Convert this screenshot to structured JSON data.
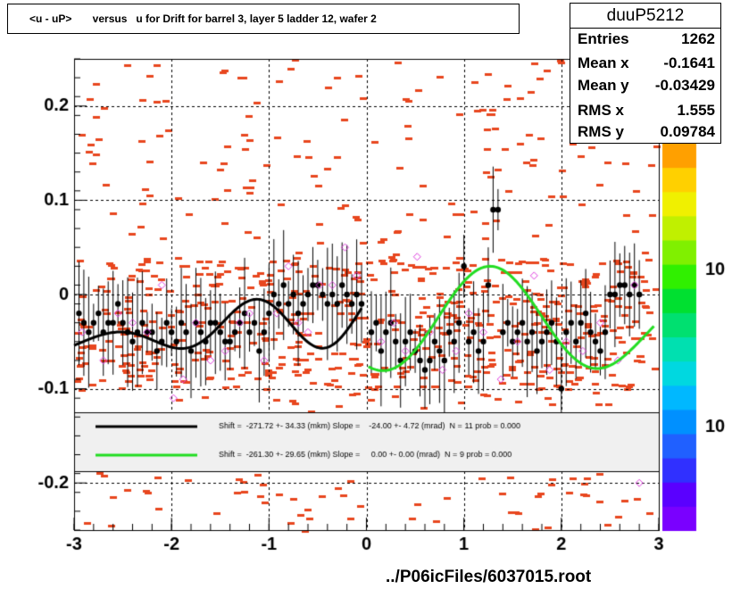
{
  "title": "<u - uP>       versus   u for Drift for barrel 3, layer 5 ladder 12, wafer 2",
  "stats": {
    "name": "duuP5212",
    "rows": [
      {
        "key": "Entries",
        "value": "1262"
      },
      {
        "key": "Mean x",
        "value": "-0.1641"
      },
      {
        "key": "Mean y",
        "value": "-0.03429"
      },
      {
        "key": "RMS x",
        "value": "1.555"
      },
      {
        "key": "RMS y",
        "value": "0.09784"
      }
    ]
  },
  "footer": "../P06icFiles/6037015.root",
  "colors": {
    "hist": "#e8461e",
    "black_fit": "#000000",
    "green_fit": "#22dd22",
    "open_marker": "#e040e0"
  },
  "chart_data": {
    "type": "scatter",
    "title": "<u - uP>       versus   u for Drift for barrel 3, layer 5 ladder 12, wafer 2",
    "xlim": [
      -3,
      3
    ],
    "ylim": [
      -0.25,
      0.25
    ],
    "xticks": [
      "-3",
      "-2",
      "-1",
      "0",
      "1",
      "2",
      "3"
    ],
    "yticks": [
      "-0.2",
      "-0.1",
      "0",
      "0.1",
      "0.2"
    ],
    "grid": true,
    "z_axis_labels": [
      "10",
      "10"
    ],
    "legend": {
      "placement": "lower-middle",
      "entries": [
        {
          "name": "Shift =  -271.72 +- 34.33 (mkm) Slope =    -24.00 +- 4.72 (mrad)  N = 11 prob = 0.000",
          "color": "#000000"
        },
        {
          "name": "Shift =  -261.30 +- 29.65 (mkm) Slope =     0.00 +- 0.00 (mrad)  N = 9 prob = 0.000",
          "color": "#22dd22"
        }
      ]
    },
    "profile_filled": {
      "x": [
        -2.95,
        -2.9,
        -2.85,
        -2.8,
        -2.75,
        -2.7,
        -2.65,
        -2.6,
        -2.55,
        -2.5,
        -2.45,
        -2.4,
        -2.35,
        -2.3,
        -2.25,
        -2.2,
        -2.15,
        -2.1,
        -2.05,
        -2.0,
        -1.95,
        -1.9,
        -1.85,
        -1.8,
        -1.75,
        -1.7,
        -1.65,
        -1.6,
        -1.55,
        -1.5,
        -1.45,
        -1.4,
        -1.35,
        -1.3,
        -1.25,
        -1.2,
        -1.15,
        -1.1,
        -1.05,
        -1.0,
        -0.95,
        -0.9,
        -0.85,
        -0.8,
        -0.75,
        -0.7,
        -0.65,
        -0.6,
        -0.55,
        -0.5,
        -0.45,
        -0.4,
        -0.35,
        -0.3,
        -0.25,
        -0.2,
        -0.15,
        -0.1,
        -0.05,
        0.05,
        0.1,
        0.15,
        0.2,
        0.25,
        0.3,
        0.35,
        0.4,
        0.45,
        0.5,
        0.55,
        0.6,
        0.65,
        0.7,
        0.75,
        0.8,
        0.85,
        0.9,
        0.95,
        1.0,
        1.05,
        1.1,
        1.15,
        1.2,
        1.25,
        1.3,
        1.35,
        1.4,
        1.45,
        1.5,
        1.55,
        1.6,
        1.65,
        1.7,
        1.75,
        1.8,
        1.85,
        1.9,
        1.95,
        2.0,
        2.05,
        2.1,
        2.15,
        2.2,
        2.25,
        2.3,
        2.35,
        2.4,
        2.45,
        2.5,
        2.55,
        2.6,
        2.65,
        2.7,
        2.75,
        2.8
      ],
      "y": [
        -0.02,
        -0.03,
        -0.04,
        -0.03,
        -0.02,
        -0.04,
        -0.03,
        -0.03,
        -0.01,
        -0.03,
        -0.04,
        -0.05,
        -0.04,
        -0.03,
        -0.04,
        -0.04,
        -0.06,
        -0.05,
        -0.03,
        -0.04,
        -0.05,
        -0.03,
        -0.04,
        -0.06,
        -0.03,
        -0.04,
        -0.05,
        -0.03,
        -0.03,
        -0.04,
        -0.05,
        -0.05,
        -0.04,
        -0.03,
        -0.02,
        -0.04,
        -0.03,
        -0.06,
        -0.04,
        -0.02,
        0.0,
        -0.01,
        0.01,
        -0.01,
        0.0,
        -0.02,
        -0.01,
        0.0,
        0.01,
        0.01,
        0.0,
        -0.01,
        0.0,
        -0.01,
        0.01,
        0.0,
        -0.01,
        0.0,
        -0.01,
        -0.04,
        -0.03,
        -0.06,
        -0.04,
        -0.03,
        -0.05,
        -0.07,
        -0.05,
        -0.04,
        -0.06,
        -0.07,
        -0.08,
        -0.07,
        -0.05,
        -0.06,
        -0.07,
        -0.04,
        -0.05,
        -0.03,
        0.03,
        -0.05,
        -0.04,
        -0.06,
        -0.05,
        0.01,
        0.09,
        0.09,
        -0.04,
        -0.03,
        -0.05,
        -0.04,
        -0.03,
        -0.05,
        -0.04,
        -0.06,
        -0.05,
        -0.04,
        -0.03,
        -0.05,
        -0.1,
        -0.04,
        -0.03,
        -0.05,
        -0.03,
        -0.02,
        -0.04,
        -0.05,
        -0.06,
        -0.04,
        0.0,
        0.0,
        0.01,
        0.01,
        0.0,
        0.01,
        0.0
      ]
    },
    "profile_open": {
      "x": [
        -2.92,
        -2.7,
        -2.55,
        -2.4,
        -2.25,
        -2.1,
        -1.98,
        -1.88,
        -1.75,
        -1.6,
        -1.45,
        -1.3,
        -1.2,
        -1.05,
        -0.92,
        -0.8,
        -0.7,
        -0.6,
        -0.48,
        -0.35,
        -0.22,
        -0.1,
        0.15,
        0.28,
        0.4,
        0.52,
        0.65,
        0.78,
        0.92,
        1.05,
        1.2,
        1.38,
        1.55,
        1.72,
        1.88,
        2.05,
        2.22,
        2.4,
        2.58,
        2.75,
        2.8
      ],
      "y": [
        -0.04,
        -0.07,
        -0.02,
        -0.03,
        -0.04,
        0.01,
        -0.11,
        -0.09,
        -0.03,
        -0.07,
        -0.06,
        -0.03,
        -0.02,
        -0.07,
        -0.02,
        0.03,
        -0.03,
        -0.04,
        0.01,
        0.01,
        0.05,
        0.02,
        -0.05,
        -0.03,
        -0.06,
        0.04,
        -0.04,
        -0.08,
        -0.06,
        -0.02,
        -0.04,
        -0.09,
        -0.05,
        0.02,
        -0.08,
        -0.05,
        -0.06,
        -0.03,
        -0.07,
        0.01,
        -0.2
      ]
    },
    "black_fit": {
      "x_range": [
        -3.0,
        -0.05
      ]
    },
    "green_fit": {
      "x_range": [
        0.02,
        2.95
      ]
    }
  }
}
